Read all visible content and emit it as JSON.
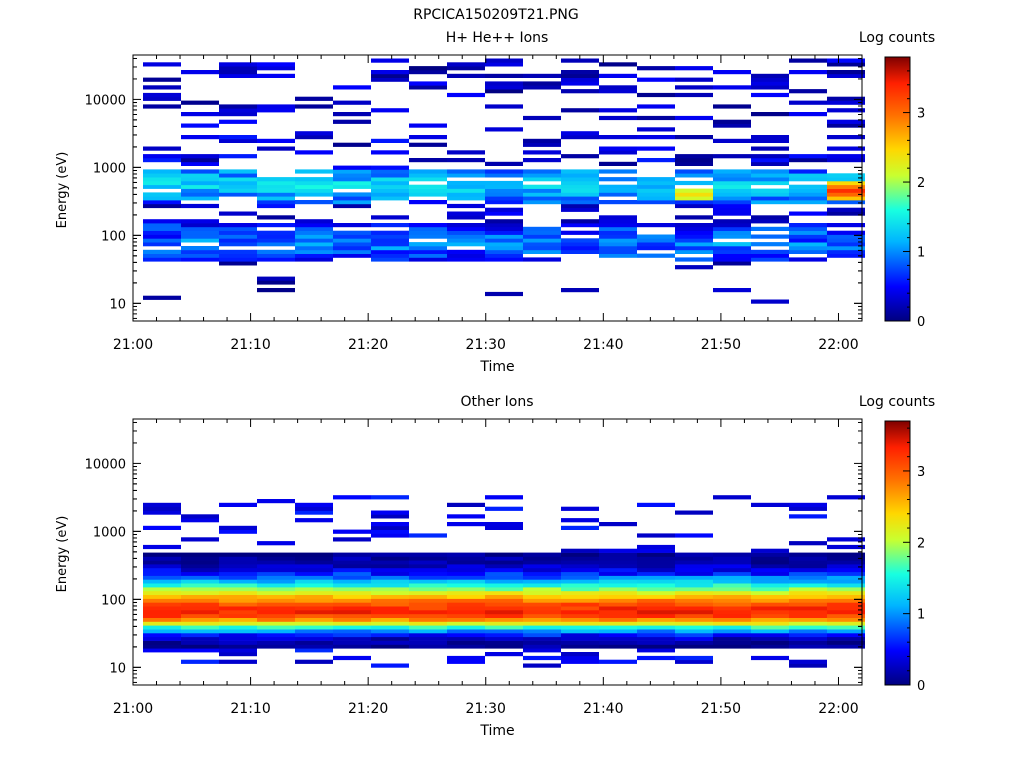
{
  "figure_title": "RPCICA150209T21.PNG",
  "chart_data": [
    {
      "type": "heatmap",
      "title": "H+ He++ Ions",
      "xlabel": "Time",
      "ylabel": "Energy (eV)",
      "x_ticks": [
        "21:00",
        "21:10",
        "21:20",
        "21:30",
        "21:40",
        "21:50",
        "22:00"
      ],
      "x_range": [
        "21:00",
        "22:02"
      ],
      "y_scale": "log",
      "y_ticks": [
        10,
        100,
        1000,
        10000
      ],
      "ylim": [
        5.5,
        45000
      ],
      "colorbar_label": "Log counts",
      "colorbar_range": [
        0,
        3.8
      ],
      "colorbar_ticks": [
        0,
        1,
        2,
        3
      ],
      "n_time_bins": 19,
      "profile": {
        "low_peak_energy_eV": 75,
        "low_peak_level": 0.7,
        "mid_peak_energy_eV": 550,
        "mid_peak_level": 1.1,
        "high_energy_sparse_upto_eV": 40000,
        "hotspot": {
          "time": "22:00",
          "energy_eV": 450,
          "level": 3.3
        },
        "secondary_hotspot": {
          "time": "21:46",
          "energy_eV": 400,
          "level": 2.3
        }
      }
    },
    {
      "type": "heatmap",
      "title": "Other Ions",
      "xlabel": "Time",
      "ylabel": "Energy (eV)",
      "x_ticks": [
        "21:00",
        "21:10",
        "21:20",
        "21:30",
        "21:40",
        "21:50",
        "22:00"
      ],
      "x_range": [
        "21:00",
        "22:02"
      ],
      "y_scale": "log",
      "y_ticks": [
        10,
        100,
        1000,
        10000
      ],
      "ylim": [
        5.5,
        45000
      ],
      "colorbar_label": "Log counts",
      "colorbar_range": [
        0,
        3.7
      ],
      "colorbar_ticks": [
        0,
        1,
        2,
        3
      ],
      "n_time_bins": 19,
      "profile": {
        "peak_energy_eV": 65,
        "peak_level": 3.2,
        "band_low_eV": 20,
        "band_high_eV": 500,
        "sparse_upto_eV": 3200
      }
    }
  ],
  "colors": {
    "colormap": [
      "#00007f",
      "#0000ff",
      "#00b4ff",
      "#18ffe0",
      "#c8ff30",
      "#ffd700",
      "#ff7000",
      "#ff2000",
      "#7f0000"
    ]
  }
}
